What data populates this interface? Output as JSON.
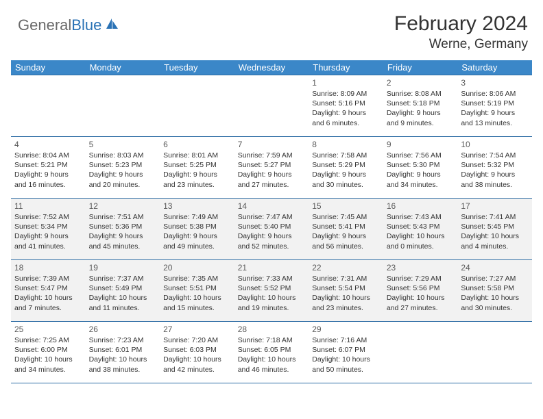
{
  "brand": {
    "part1": "General",
    "part2": "Blue"
  },
  "title": "February 2024",
  "location": "Werne, Germany",
  "colors": {
    "header_bg": "#3b87c8",
    "border": "#2a6aa3",
    "shaded_bg": "#f2f2f2",
    "text": "#333333",
    "logo_gray": "#6a6a6a",
    "logo_blue": "#2a72b5"
  },
  "weekday_headers": [
    "Sunday",
    "Monday",
    "Tuesday",
    "Wednesday",
    "Thursday",
    "Friday",
    "Saturday"
  ],
  "weeks": [
    {
      "shaded": false,
      "days": [
        null,
        null,
        null,
        null,
        {
          "n": "1",
          "sr": "Sunrise: 8:09 AM",
          "ss": "Sunset: 5:16 PM",
          "d1": "Daylight: 9 hours",
          "d2": "and 6 minutes."
        },
        {
          "n": "2",
          "sr": "Sunrise: 8:08 AM",
          "ss": "Sunset: 5:18 PM",
          "d1": "Daylight: 9 hours",
          "d2": "and 9 minutes."
        },
        {
          "n": "3",
          "sr": "Sunrise: 8:06 AM",
          "ss": "Sunset: 5:19 PM",
          "d1": "Daylight: 9 hours",
          "d2": "and 13 minutes."
        }
      ]
    },
    {
      "shaded": false,
      "days": [
        {
          "n": "4",
          "sr": "Sunrise: 8:04 AM",
          "ss": "Sunset: 5:21 PM",
          "d1": "Daylight: 9 hours",
          "d2": "and 16 minutes."
        },
        {
          "n": "5",
          "sr": "Sunrise: 8:03 AM",
          "ss": "Sunset: 5:23 PM",
          "d1": "Daylight: 9 hours",
          "d2": "and 20 minutes."
        },
        {
          "n": "6",
          "sr": "Sunrise: 8:01 AM",
          "ss": "Sunset: 5:25 PM",
          "d1": "Daylight: 9 hours",
          "d2": "and 23 minutes."
        },
        {
          "n": "7",
          "sr": "Sunrise: 7:59 AM",
          "ss": "Sunset: 5:27 PM",
          "d1": "Daylight: 9 hours",
          "d2": "and 27 minutes."
        },
        {
          "n": "8",
          "sr": "Sunrise: 7:58 AM",
          "ss": "Sunset: 5:29 PM",
          "d1": "Daylight: 9 hours",
          "d2": "and 30 minutes."
        },
        {
          "n": "9",
          "sr": "Sunrise: 7:56 AM",
          "ss": "Sunset: 5:30 PM",
          "d1": "Daylight: 9 hours",
          "d2": "and 34 minutes."
        },
        {
          "n": "10",
          "sr": "Sunrise: 7:54 AM",
          "ss": "Sunset: 5:32 PM",
          "d1": "Daylight: 9 hours",
          "d2": "and 38 minutes."
        }
      ]
    },
    {
      "shaded": true,
      "days": [
        {
          "n": "11",
          "sr": "Sunrise: 7:52 AM",
          "ss": "Sunset: 5:34 PM",
          "d1": "Daylight: 9 hours",
          "d2": "and 41 minutes."
        },
        {
          "n": "12",
          "sr": "Sunrise: 7:51 AM",
          "ss": "Sunset: 5:36 PM",
          "d1": "Daylight: 9 hours",
          "d2": "and 45 minutes."
        },
        {
          "n": "13",
          "sr": "Sunrise: 7:49 AM",
          "ss": "Sunset: 5:38 PM",
          "d1": "Daylight: 9 hours",
          "d2": "and 49 minutes."
        },
        {
          "n": "14",
          "sr": "Sunrise: 7:47 AM",
          "ss": "Sunset: 5:40 PM",
          "d1": "Daylight: 9 hours",
          "d2": "and 52 minutes."
        },
        {
          "n": "15",
          "sr": "Sunrise: 7:45 AM",
          "ss": "Sunset: 5:41 PM",
          "d1": "Daylight: 9 hours",
          "d2": "and 56 minutes."
        },
        {
          "n": "16",
          "sr": "Sunrise: 7:43 AM",
          "ss": "Sunset: 5:43 PM",
          "d1": "Daylight: 10 hours",
          "d2": "and 0 minutes."
        },
        {
          "n": "17",
          "sr": "Sunrise: 7:41 AM",
          "ss": "Sunset: 5:45 PM",
          "d1": "Daylight: 10 hours",
          "d2": "and 4 minutes."
        }
      ]
    },
    {
      "shaded": true,
      "days": [
        {
          "n": "18",
          "sr": "Sunrise: 7:39 AM",
          "ss": "Sunset: 5:47 PM",
          "d1": "Daylight: 10 hours",
          "d2": "and 7 minutes."
        },
        {
          "n": "19",
          "sr": "Sunrise: 7:37 AM",
          "ss": "Sunset: 5:49 PM",
          "d1": "Daylight: 10 hours",
          "d2": "and 11 minutes."
        },
        {
          "n": "20",
          "sr": "Sunrise: 7:35 AM",
          "ss": "Sunset: 5:51 PM",
          "d1": "Daylight: 10 hours",
          "d2": "and 15 minutes."
        },
        {
          "n": "21",
          "sr": "Sunrise: 7:33 AM",
          "ss": "Sunset: 5:52 PM",
          "d1": "Daylight: 10 hours",
          "d2": "and 19 minutes."
        },
        {
          "n": "22",
          "sr": "Sunrise: 7:31 AM",
          "ss": "Sunset: 5:54 PM",
          "d1": "Daylight: 10 hours",
          "d2": "and 23 minutes."
        },
        {
          "n": "23",
          "sr": "Sunrise: 7:29 AM",
          "ss": "Sunset: 5:56 PM",
          "d1": "Daylight: 10 hours",
          "d2": "and 27 minutes."
        },
        {
          "n": "24",
          "sr": "Sunrise: 7:27 AM",
          "ss": "Sunset: 5:58 PM",
          "d1": "Daylight: 10 hours",
          "d2": "and 30 minutes."
        }
      ]
    },
    {
      "shaded": false,
      "days": [
        {
          "n": "25",
          "sr": "Sunrise: 7:25 AM",
          "ss": "Sunset: 6:00 PM",
          "d1": "Daylight: 10 hours",
          "d2": "and 34 minutes."
        },
        {
          "n": "26",
          "sr": "Sunrise: 7:23 AM",
          "ss": "Sunset: 6:01 PM",
          "d1": "Daylight: 10 hours",
          "d2": "and 38 minutes."
        },
        {
          "n": "27",
          "sr": "Sunrise: 7:20 AM",
          "ss": "Sunset: 6:03 PM",
          "d1": "Daylight: 10 hours",
          "d2": "and 42 minutes."
        },
        {
          "n": "28",
          "sr": "Sunrise: 7:18 AM",
          "ss": "Sunset: 6:05 PM",
          "d1": "Daylight: 10 hours",
          "d2": "and 46 minutes."
        },
        {
          "n": "29",
          "sr": "Sunrise: 7:16 AM",
          "ss": "Sunset: 6:07 PM",
          "d1": "Daylight: 10 hours",
          "d2": "and 50 minutes."
        },
        null,
        null
      ]
    }
  ]
}
